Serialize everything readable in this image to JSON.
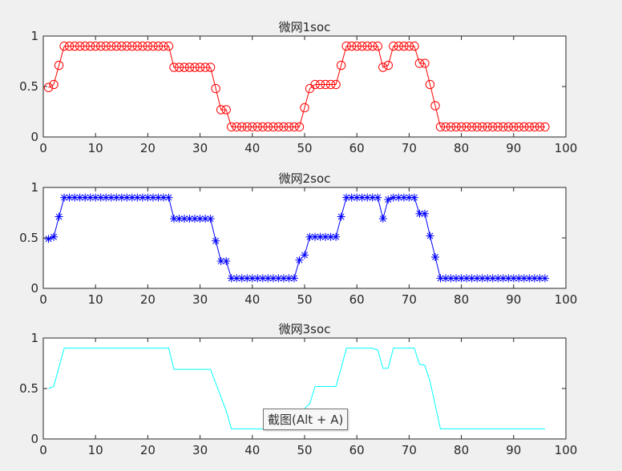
{
  "figure": {
    "background": "#f0f0f0",
    "axes_background": "#ffffff",
    "axis_color": "#262626"
  },
  "tooltip": {
    "text": "截图(Alt + A)"
  },
  "chart_data": [
    {
      "type": "line",
      "title": "微网1soc",
      "xlabel": "",
      "ylabel": "",
      "xlim": [
        0,
        100
      ],
      "ylim": [
        0,
        1
      ],
      "xticks": [
        0,
        10,
        20,
        30,
        40,
        50,
        60,
        70,
        80,
        90,
        100
      ],
      "yticks": [
        0,
        0.5,
        1
      ],
      "ytick_labels": [
        "0",
        "0.5",
        "1"
      ],
      "grid": false,
      "color": "#ff0000",
      "marker": "circle",
      "x": [
        1,
        2,
        3,
        4,
        5,
        6,
        7,
        8,
        9,
        10,
        11,
        12,
        13,
        14,
        15,
        16,
        17,
        18,
        19,
        20,
        21,
        22,
        23,
        24,
        25,
        26,
        27,
        28,
        29,
        30,
        31,
        32,
        33,
        34,
        35,
        36,
        37,
        38,
        39,
        40,
        41,
        42,
        43,
        44,
        45,
        46,
        47,
        48,
        49,
        50,
        51,
        52,
        53,
        54,
        55,
        56,
        57,
        58,
        59,
        60,
        61,
        62,
        63,
        64,
        65,
        66,
        67,
        68,
        69,
        70,
        71,
        72,
        73,
        74,
        75,
        76,
        77,
        78,
        79,
        80,
        81,
        82,
        83,
        84,
        85,
        86,
        87,
        88,
        89,
        90,
        91,
        92,
        93,
        94,
        95,
        96
      ],
      "values": [
        0.49,
        0.52,
        0.71,
        0.9,
        0.9,
        0.9,
        0.9,
        0.9,
        0.9,
        0.9,
        0.9,
        0.9,
        0.9,
        0.9,
        0.9,
        0.9,
        0.9,
        0.9,
        0.9,
        0.9,
        0.9,
        0.9,
        0.9,
        0.9,
        0.69,
        0.69,
        0.69,
        0.69,
        0.69,
        0.69,
        0.69,
        0.69,
        0.48,
        0.27,
        0.27,
        0.1,
        0.1,
        0.1,
        0.1,
        0.1,
        0.1,
        0.1,
        0.1,
        0.1,
        0.1,
        0.1,
        0.1,
        0.1,
        0.1,
        0.29,
        0.48,
        0.52,
        0.52,
        0.52,
        0.52,
        0.52,
        0.71,
        0.9,
        0.9,
        0.9,
        0.9,
        0.9,
        0.9,
        0.9,
        0.69,
        0.71,
        0.9,
        0.9,
        0.9,
        0.9,
        0.9,
        0.73,
        0.73,
        0.52,
        0.31,
        0.1,
        0.1,
        0.1,
        0.1,
        0.1,
        0.1,
        0.1,
        0.1,
        0.1,
        0.1,
        0.1,
        0.1,
        0.1,
        0.1,
        0.1,
        0.1,
        0.1,
        0.1,
        0.1,
        0.1,
        0.1
      ]
    },
    {
      "type": "line",
      "title": "微网2soc",
      "xlabel": "",
      "ylabel": "",
      "xlim": [
        0,
        100
      ],
      "ylim": [
        0,
        1
      ],
      "xticks": [
        0,
        10,
        20,
        30,
        40,
        50,
        60,
        70,
        80,
        90,
        100
      ],
      "yticks": [
        0,
        0.5,
        1
      ],
      "ytick_labels": [
        "0",
        "0.5",
        "1"
      ],
      "grid": false,
      "color": "#0000ff",
      "marker": "asterisk",
      "x": [
        1,
        2,
        3,
        4,
        5,
        6,
        7,
        8,
        9,
        10,
        11,
        12,
        13,
        14,
        15,
        16,
        17,
        18,
        19,
        20,
        21,
        22,
        23,
        24,
        25,
        26,
        27,
        28,
        29,
        30,
        31,
        32,
        33,
        34,
        35,
        36,
        37,
        38,
        39,
        40,
        41,
        42,
        43,
        44,
        45,
        46,
        47,
        48,
        49,
        50,
        51,
        52,
        53,
        54,
        55,
        56,
        57,
        58,
        59,
        60,
        61,
        62,
        63,
        64,
        65,
        66,
        67,
        68,
        69,
        70,
        71,
        72,
        73,
        74,
        75,
        76,
        77,
        78,
        79,
        80,
        81,
        82,
        83,
        84,
        85,
        86,
        87,
        88,
        89,
        90,
        91,
        92,
        93,
        94,
        95,
        96
      ],
      "values": [
        0.49,
        0.51,
        0.71,
        0.9,
        0.9,
        0.9,
        0.9,
        0.9,
        0.9,
        0.9,
        0.9,
        0.9,
        0.9,
        0.9,
        0.9,
        0.9,
        0.9,
        0.9,
        0.9,
        0.9,
        0.9,
        0.9,
        0.9,
        0.9,
        0.69,
        0.69,
        0.69,
        0.69,
        0.69,
        0.69,
        0.69,
        0.69,
        0.47,
        0.27,
        0.27,
        0.1,
        0.1,
        0.1,
        0.1,
        0.1,
        0.1,
        0.1,
        0.1,
        0.1,
        0.1,
        0.1,
        0.1,
        0.1,
        0.28,
        0.33,
        0.51,
        0.51,
        0.51,
        0.51,
        0.51,
        0.51,
        0.71,
        0.9,
        0.9,
        0.9,
        0.9,
        0.9,
        0.9,
        0.9,
        0.69,
        0.88,
        0.9,
        0.9,
        0.9,
        0.9,
        0.9,
        0.74,
        0.74,
        0.52,
        0.31,
        0.1,
        0.1,
        0.1,
        0.1,
        0.1,
        0.1,
        0.1,
        0.1,
        0.1,
        0.1,
        0.1,
        0.1,
        0.1,
        0.1,
        0.1,
        0.1,
        0.1,
        0.1,
        0.1,
        0.1,
        0.1
      ]
    },
    {
      "type": "line",
      "title": "微网3soc",
      "xlabel": "",
      "ylabel": "",
      "xlim": [
        0,
        100
      ],
      "ylim": [
        0,
        1
      ],
      "xticks": [
        0,
        10,
        20,
        30,
        40,
        50,
        60,
        70,
        80,
        90,
        100
      ],
      "yticks": [
        0,
        0.5,
        1
      ],
      "ytick_labels": [
        "0",
        "0.5",
        "1"
      ],
      "grid": false,
      "color": "#00ffff",
      "marker": "none",
      "x": [
        1,
        2,
        4,
        24,
        25,
        32,
        35,
        36,
        49,
        50,
        51,
        52,
        56,
        57,
        58,
        63,
        64,
        65,
        66,
        67,
        71,
        72,
        73,
        74,
        76,
        96
      ],
      "values": [
        0.5,
        0.52,
        0.9,
        0.9,
        0.69,
        0.69,
        0.28,
        0.1,
        0.1,
        0.3,
        0.35,
        0.52,
        0.52,
        0.7,
        0.9,
        0.9,
        0.88,
        0.7,
        0.7,
        0.9,
        0.9,
        0.74,
        0.73,
        0.57,
        0.1,
        0.1
      ]
    }
  ]
}
